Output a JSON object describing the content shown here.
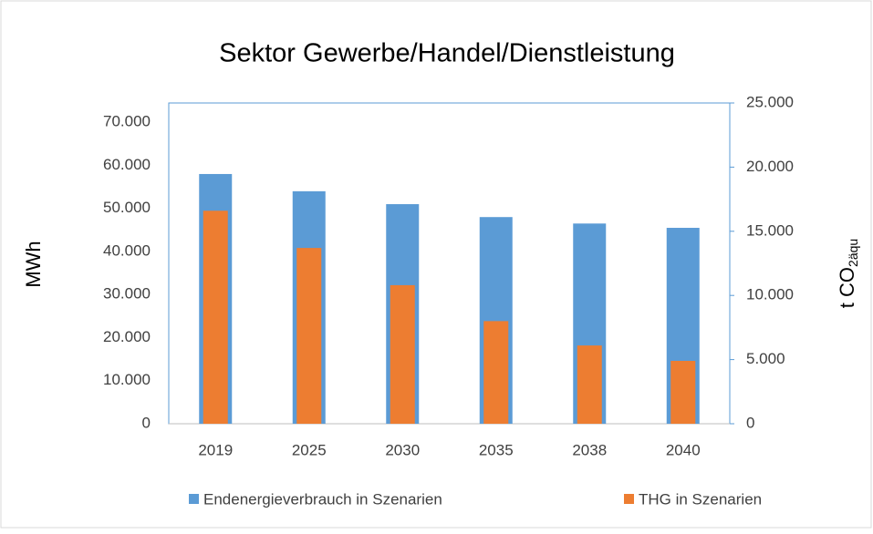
{
  "chart_data": {
    "type": "bar",
    "title": "Sektor Gewerbe/Handel/Dienstleistung",
    "y_label": "MWh",
    "y2_label": {
      "text": "t CO",
      "subscript": "2äqu"
    },
    "categories": [
      "2019",
      "2025",
      "2030",
      "2035",
      "2038",
      "2040"
    ],
    "series": [
      {
        "name": "Endenergieverbrauch in Szenarien",
        "color": "#5b9bd5",
        "values": [
          58000,
          54000,
          51000,
          48000,
          46500,
          45500
        ]
      },
      {
        "name": "THG in Szenarien",
        "color": "#ed7d31",
        "axis": "y2",
        "values": [
          16600,
          13700,
          10800,
          8000,
          6100,
          4900
        ]
      }
    ],
    "ylim": [
      0,
      74500
    ],
    "yticks": [
      0,
      {
        "value": 10000,
        "label": "10.000"
      },
      {
        "value": 20000,
        "label": "20.000"
      },
      {
        "value": 30000,
        "label": "30.000"
      },
      {
        "value": 40000,
        "label": "40.000"
      },
      {
        "value": 50000,
        "label": "50.000"
      },
      {
        "value": 60000,
        "label": "60.000"
      },
      {
        "value": 70000,
        "label": "70.000"
      }
    ],
    "y2lim": [
      0,
      25000
    ],
    "y2ticks": [
      0,
      {
        "value": 5000,
        "label": "5.000"
      },
      {
        "value": 10000,
        "label": "10.000"
      },
      {
        "value": 15000,
        "label": "15.000"
      },
      {
        "value": 20000,
        "label": "20.000"
      },
      {
        "value": 25000,
        "label": "25.000"
      }
    ],
    "legend": "bottom"
  }
}
